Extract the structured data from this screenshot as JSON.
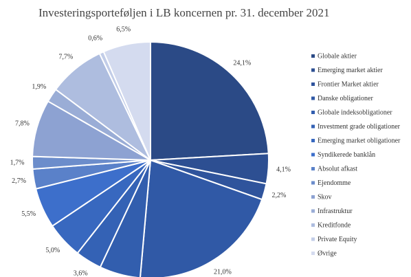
{
  "chart_data": {
    "type": "pie",
    "title": "Investeringsporteføljen i LB koncernen pr. 31. december 2021",
    "categories": [
      "Globale aktier",
      "Emerging market aktier",
      "Frontier Market aktier",
      "Danske obligationer",
      "Globale indeksobligationer",
      "Investment grade obligationer",
      "Emerging market obligationer",
      "Syndikerede banklån",
      "Absolut afkast",
      "Ejendomme",
      "Skov",
      "Infrastruktur",
      "Kreditfonde",
      "Private Equity",
      "Øvrige"
    ],
    "values": [
      24.1,
      4.1,
      2.2,
      21.0,
      5.6,
      3.6,
      5.0,
      5.5,
      2.7,
      1.7,
      7.8,
      1.9,
      7.7,
      0.6,
      6.5
    ],
    "value_labels": [
      "24,1%",
      "4,1%",
      "2,2%",
      "21,0%",
      null,
      "3,6%",
      "5,0%",
      "5,5%",
      "2,7%",
      "1,7%",
      "7,8%",
      "1,9%",
      "7,7%",
      "0,6%",
      "6,5%"
    ],
    "colors": [
      "#2b4a86",
      "#2d4f92",
      "#2f549c",
      "#3059a6",
      "#325eae",
      "#3462b5",
      "#3868bf",
      "#3d6fcb",
      "#5a81c9",
      "#6c8dcb",
      "#8da2d2",
      "#9aadd6",
      "#aebddf",
      "#c2cde8",
      "#d4dbef"
    ],
    "legend": "right"
  }
}
